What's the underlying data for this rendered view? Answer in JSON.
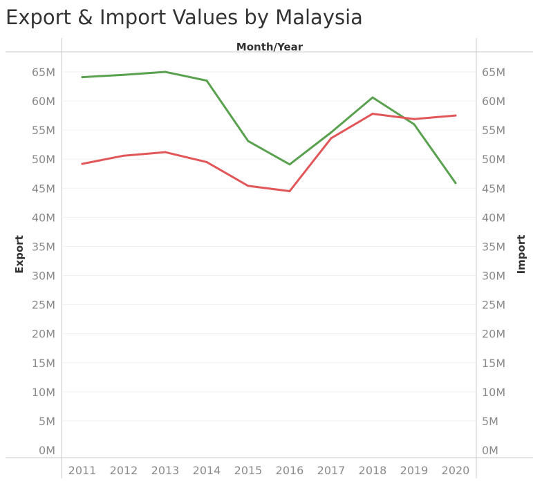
{
  "chart_data": {
    "type": "line",
    "title": "Export & Import Values by Malaysia",
    "column_header": "Month/Year",
    "categories": [
      "2011",
      "2012",
      "2013",
      "2014",
      "2015",
      "2016",
      "2017",
      "2018",
      "2019",
      "2020"
    ],
    "y_left_label": "Export",
    "y_right_label": "Import",
    "ylim": [
      0,
      65000000
    ],
    "y_ticks": [
      0,
      5000000,
      10000000,
      15000000,
      20000000,
      25000000,
      30000000,
      35000000,
      40000000,
      45000000,
      50000000,
      55000000,
      60000000,
      65000000
    ],
    "y_tick_labels": [
      "0M",
      "5M",
      "10M",
      "15M",
      "20M",
      "25M",
      "30M",
      "35M",
      "40M",
      "45M",
      "50M",
      "55M",
      "60M",
      "65M"
    ],
    "grid": true,
    "legend": "none",
    "series": [
      {
        "axis": "left",
        "color": "#59a14f",
        "values": [
          64100000,
          64500000,
          65000000,
          63500000,
          53100000,
          49100000,
          54600000,
          60600000,
          56000000,
          45900000
        ]
      },
      {
        "axis": "right",
        "color": "#e15759",
        "values": [
          49200000,
          50600000,
          51200000,
          49500000,
          45400000,
          44500000,
          53600000,
          57800000,
          56900000,
          57500000
        ]
      }
    ]
  }
}
